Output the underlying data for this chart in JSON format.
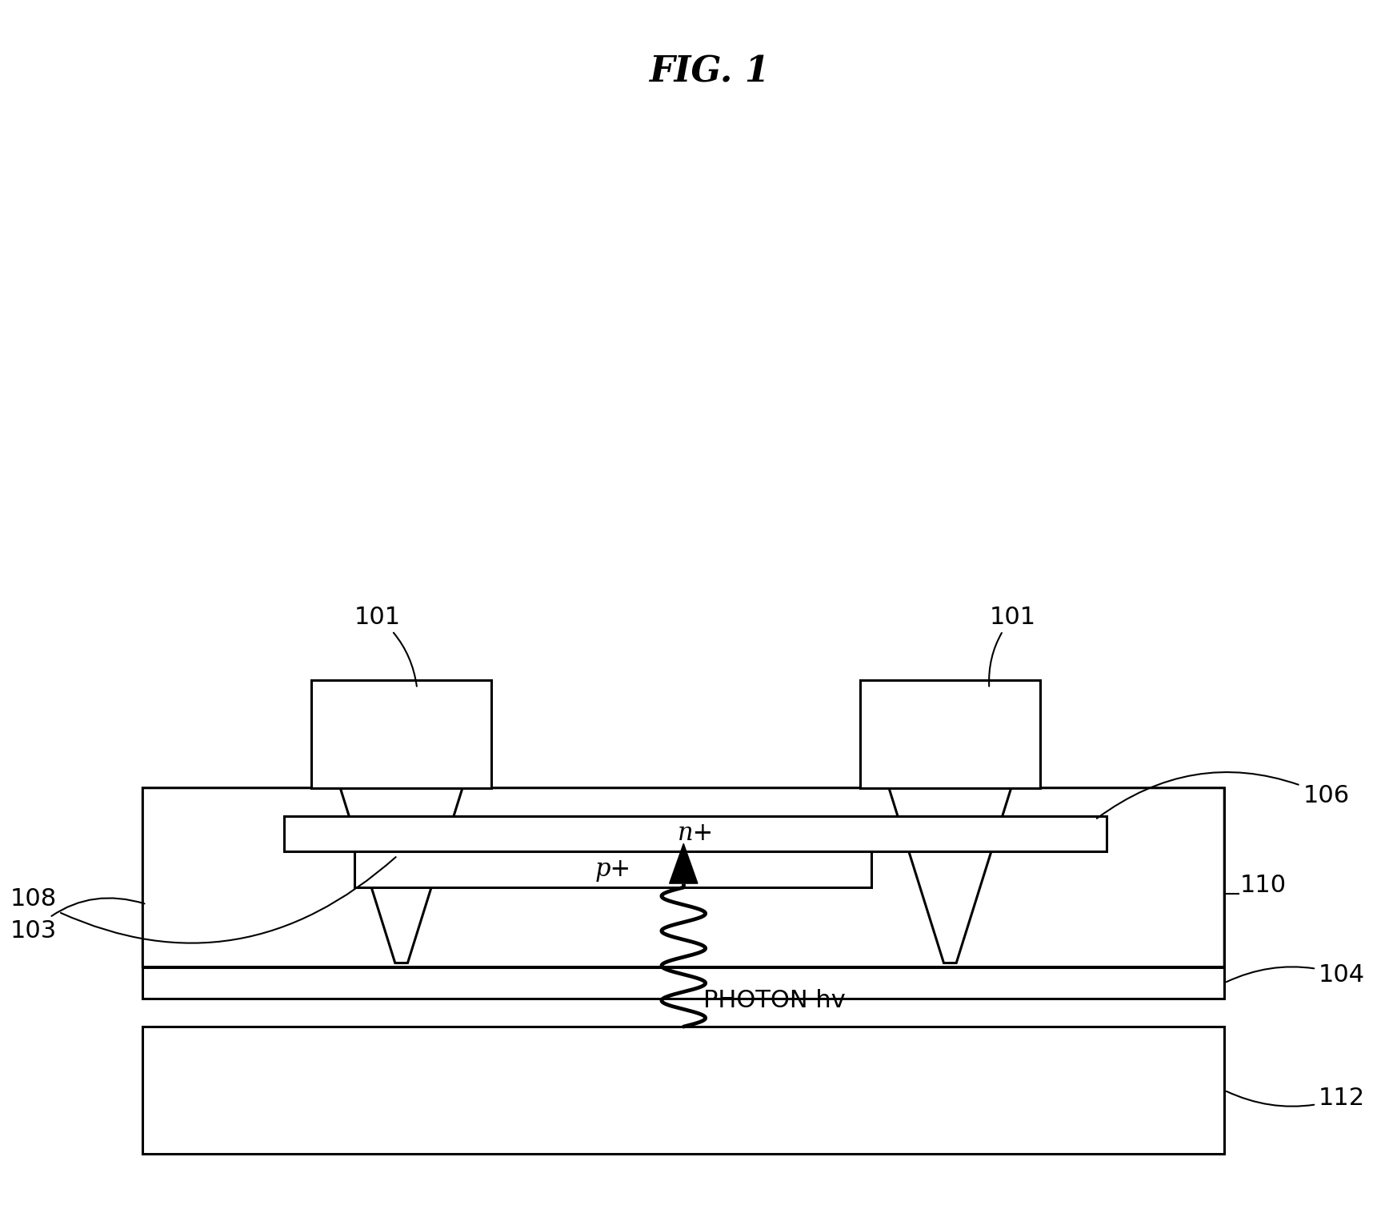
{
  "title": "FIG. 1",
  "bg_color": "#ffffff",
  "line_color": "#000000",
  "line_width": 2.2,
  "fig_width": 17.46,
  "fig_height": 15.16,
  "labels": {
    "101_left": "101",
    "101_right": "101",
    "103": "103",
    "104": "104",
    "106": "106",
    "108": "108",
    "110": "110",
    "112": "112",
    "n_plus": "n+",
    "p_plus": "p+",
    "photon": "PHOTON hv"
  }
}
